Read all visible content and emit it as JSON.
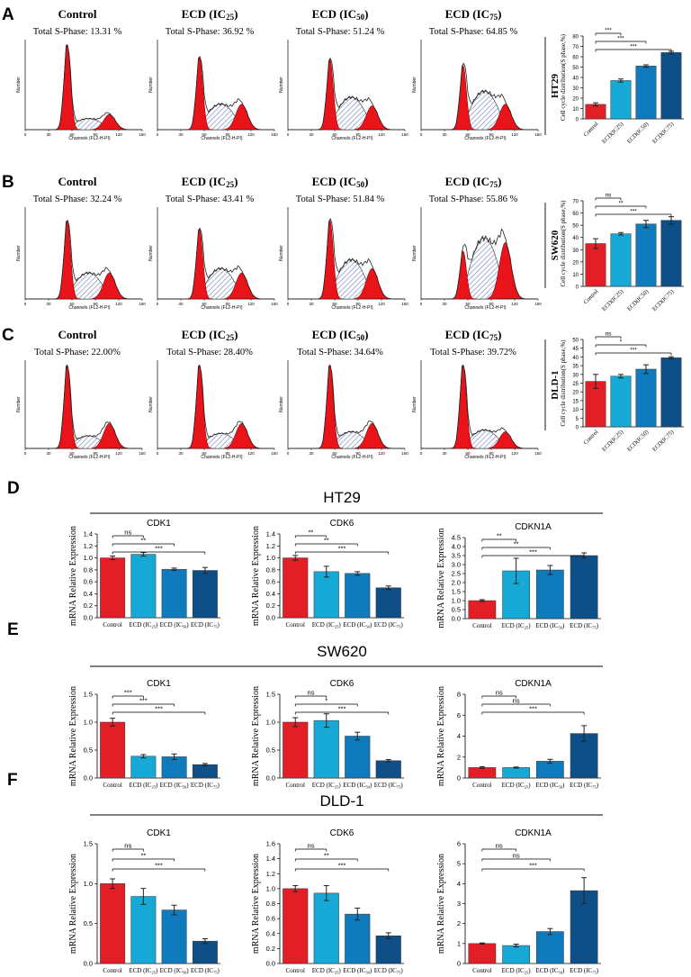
{
  "colors": {
    "control": "#e41e26",
    "ic25": "#17a9d6",
    "ic50": "#0f7bbd",
    "ic75": "#0d4f86",
    "peak": "#e8141a",
    "hatch": "#7f8fc4"
  },
  "top_panels": [
    {
      "letter": "A",
      "cell_line": "HT29",
      "histograms": [
        {
          "title": "Control",
          "s_phase": "Total S-Phase: 13.31 %",
          "g1": 1.0,
          "s": 0.13,
          "g2": 0.18
        },
        {
          "title": "ECD (IC",
          "sub": "25",
          "s_phase": "Total S-Phase: 36.92 %",
          "g1": 0.85,
          "s": 0.3,
          "g2": 0.3
        },
        {
          "title": "ECD (IC",
          "sub": "50",
          "s_phase": "Total S-Phase: 51.24 %",
          "g1": 0.82,
          "s": 0.38,
          "g2": 0.28
        },
        {
          "title": "ECD (IC",
          "sub": "75",
          "s_phase": "Total S-Phase: 64.85 %",
          "g1": 0.75,
          "s": 0.45,
          "g2": 0.3
        }
      ]
    },
    {
      "letter": "B",
      "cell_line": "SW620",
      "histograms": [
        {
          "title": "Control",
          "s_phase": "Total S-Phase: 32.24 %",
          "g1": 0.9,
          "s": 0.3,
          "g2": 0.3
        },
        {
          "title": "ECD (IC",
          "sub": "25",
          "s_phase": "Total S-Phase: 43.41 %",
          "g1": 0.8,
          "s": 0.35,
          "g2": 0.3
        },
        {
          "title": "ECD (IC",
          "sub": "50",
          "s_phase": "Total S-Phase: 51.84 %",
          "g1": 0.9,
          "s": 0.45,
          "g2": 0.35
        },
        {
          "title": "ECD (IC",
          "sub": "75",
          "s_phase": "Total S-Phase: 55.86 %",
          "g1": 0.55,
          "s": 0.7,
          "g2": 0.65
        }
      ]
    },
    {
      "letter": "C",
      "cell_line": "DLD-1",
      "histograms": [
        {
          "title": "Control",
          "s_phase": "Total S-Phase: 22.00%",
          "g1": 1.0,
          "s": 0.15,
          "g2": 0.3
        },
        {
          "title": "ECD (IC",
          "sub": "25",
          "s_phase": "Total S-Phase: 28.40%",
          "g1": 1.0,
          "s": 0.18,
          "g2": 0.3
        },
        {
          "title": "ECD (IC",
          "sub": "50",
          "s_phase": "Total S-Phase: 34.64%",
          "g1": 1.0,
          "s": 0.2,
          "g2": 0.3
        },
        {
          "title": "ECD (IC",
          "sub": "75",
          "s_phase": "Total S-Phase: 39.72%",
          "g1": 1.0,
          "s": 0.22,
          "g2": 0.2
        }
      ]
    }
  ],
  "histogram_labels": {
    "xlabel": "Channels   (FL2-H-PI)",
    "ylabel": "Number",
    "xticks": [
      "0",
      "30",
      "60",
      "90",
      "120",
      "150"
    ]
  },
  "chart_data": [
    {
      "type": "bar",
      "panel": "A",
      "title": "HT29",
      "ylabel": "Cell cycle distribution(S phase,%)",
      "categories": [
        "Control",
        "ECD(IC25)",
        "ECD(IC50)",
        "ECD(IC75)"
      ],
      "values": [
        14,
        37,
        51,
        64
      ],
      "errors": [
        1.5,
        1.5,
        1.2,
        1.3
      ],
      "ylim": [
        0,
        80
      ],
      "yticks": [
        "0",
        "10",
        "20",
        "30",
        "40",
        "50",
        "60",
        "70",
        "80"
      ],
      "sig": [
        "***",
        "***",
        "***"
      ]
    },
    {
      "type": "bar",
      "panel": "B",
      "title": "SW620",
      "ylabel": "Cell cycle distribution(S phase,%)",
      "categories": [
        "Control",
        "ECD(IC25)",
        "ECD(IC50)",
        "ECD(IC75)"
      ],
      "values": [
        35,
        43,
        51,
        54
      ],
      "errors": [
        4,
        1,
        3,
        3
      ],
      "ylim": [
        0,
        70
      ],
      "yticks": [
        "0",
        "10",
        "20",
        "30",
        "40",
        "50",
        "60",
        "70"
      ],
      "sig": [
        "ns",
        "**",
        "***"
      ]
    },
    {
      "type": "bar",
      "panel": "C",
      "title": "DLD-1",
      "ylabel": "Cell cycle distribution(S phase,%)",
      "categories": [
        "Control",
        "ECD(IC25)",
        "ECD(IC50)",
        "ECD(IC75)"
      ],
      "values": [
        26,
        29,
        33,
        39.5
      ],
      "errors": [
        4,
        1,
        2.5,
        0.6
      ],
      "ylim": [
        0,
        50
      ],
      "yticks": [
        "0",
        "5",
        "10",
        "15",
        "20",
        "25",
        "30",
        "35",
        "40",
        "45",
        "50"
      ],
      "sig": [
        "ns",
        "*",
        "***"
      ]
    },
    {
      "type": "bar",
      "panel": "D",
      "group": "HT29",
      "title": "CDK1",
      "ylabel": "mRNA Relative Expression",
      "categories": [
        "Control",
        "ECD (IC25)",
        "ECD (IC50)",
        "ECD (IC75)"
      ],
      "values": [
        1.0,
        1.06,
        0.81,
        0.79
      ],
      "errors": [
        0.03,
        0.03,
        0.02,
        0.05
      ],
      "ylim": [
        0,
        1.4
      ],
      "yticks": [
        "0.0",
        "0.2",
        "0.4",
        "0.6",
        "0.8",
        "1.0",
        "1.2",
        "1.4"
      ],
      "sig": [
        "ns",
        "**",
        "***"
      ]
    },
    {
      "type": "bar",
      "panel": "D",
      "group": "HT29",
      "title": "CDK6",
      "ylabel": "mRNA Relative Expression",
      "categories": [
        "Control",
        "ECD (IC25)",
        "ECD (IC50)",
        "ECD (IC75)"
      ],
      "values": [
        1.0,
        0.77,
        0.74,
        0.5
      ],
      "errors": [
        0.04,
        0.09,
        0.03,
        0.03
      ],
      "ylim": [
        0,
        1.4
      ],
      "yticks": [
        "0.0",
        "0.2",
        "0.4",
        "0.6",
        "0.8",
        "1.0",
        "1.2",
        "1.4"
      ],
      "sig": [
        "**",
        "**",
        "***"
      ]
    },
    {
      "type": "bar",
      "panel": "D",
      "group": "HT29",
      "title": "CDKN1A",
      "ylabel": "mRNA Relative Expression",
      "categories": [
        "Control",
        "ECD (IC25)",
        "ECD (IC50)",
        "ECD (IC75)"
      ],
      "values": [
        1.0,
        2.65,
        2.7,
        3.5
      ],
      "errors": [
        0.05,
        0.7,
        0.25,
        0.15
      ],
      "ylim": [
        0,
        4.5
      ],
      "yticks": [
        "0.0",
        "0.5",
        "1.0",
        "1.5",
        "2.0",
        "2.5",
        "3.0",
        "3.5",
        "4.0",
        "4.5"
      ],
      "sig": [
        "**",
        "**",
        "***"
      ]
    },
    {
      "type": "bar",
      "panel": "E",
      "group": "SW620",
      "title": "CDK1",
      "ylabel": "mRNA Relative Expression",
      "categories": [
        "Control",
        "ECD (IC25)",
        "ECD (IC50)",
        "ECD (IC75)"
      ],
      "values": [
        1.0,
        0.39,
        0.38,
        0.24
      ],
      "errors": [
        0.07,
        0.03,
        0.05,
        0.02
      ],
      "ylim": [
        0,
        1.5
      ],
      "yticks": [
        "0.0",
        "0.5",
        "1.0",
        "1.5"
      ],
      "sig": [
        "***",
        "***",
        "***"
      ]
    },
    {
      "type": "bar",
      "panel": "E",
      "group": "SW620",
      "title": "CDK6",
      "ylabel": "mRNA Relative Expression",
      "categories": [
        "Control",
        "ECD (IC25)",
        "ECD (IC50)",
        "ECD (IC75)"
      ],
      "values": [
        1.0,
        1.03,
        0.75,
        0.31
      ],
      "errors": [
        0.08,
        0.12,
        0.07,
        0.02
      ],
      "ylim": [
        0,
        1.5
      ],
      "yticks": [
        "0.0",
        "0.5",
        "1.0",
        "1.5"
      ],
      "sig": [
        "ns",
        "*",
        "***"
      ]
    },
    {
      "type": "bar",
      "panel": "E",
      "group": "SW620",
      "title": "CDKN1A",
      "ylabel": "mRNA Relative Expression",
      "categories": [
        "Control",
        "ECD (IC25)",
        "ECD (IC50)",
        "ECD (IC75)"
      ],
      "values": [
        1.0,
        1.0,
        1.6,
        4.25
      ],
      "errors": [
        0.08,
        0.05,
        0.18,
        0.75
      ],
      "ylim": [
        0,
        8
      ],
      "yticks": [
        "0",
        "2",
        "4",
        "6",
        "8"
      ],
      "sig": [
        "ns",
        "ns",
        "***"
      ]
    },
    {
      "type": "bar",
      "panel": "F",
      "group": "DLD-1",
      "title": "CDK1",
      "ylabel": "mRNA Relative Expression",
      "categories": [
        "Control",
        "ECD (IC25)",
        "ECD (IC50)",
        "ECD (IC75)"
      ],
      "values": [
        1.0,
        0.84,
        0.67,
        0.28
      ],
      "errors": [
        0.06,
        0.1,
        0.06,
        0.03
      ],
      "ylim": [
        0,
        1.5
      ],
      "yticks": [
        "0.0",
        "0.5",
        "1.0",
        "1.5"
      ],
      "sig": [
        "ns",
        "**",
        "***"
      ]
    },
    {
      "type": "bar",
      "panel": "F",
      "group": "DLD-1",
      "title": "CDK6",
      "ylabel": "mRNA Relative Expression",
      "categories": [
        "Control",
        "ECD (IC25)",
        "ECD (IC50)",
        "ECD (IC75)"
      ],
      "values": [
        1.0,
        0.94,
        0.66,
        0.37
      ],
      "errors": [
        0.04,
        0.1,
        0.08,
        0.04
      ],
      "ylim": [
        0,
        1.6
      ],
      "yticks": [
        "0.0",
        "0.2",
        "0.4",
        "0.6",
        "0.8",
        "1.0",
        "1.2",
        "1.4",
        "1.6"
      ],
      "sig": [
        "ns",
        "**",
        "***"
      ]
    },
    {
      "type": "bar",
      "panel": "F",
      "group": "DLD-1",
      "title": "CDKN1A",
      "ylabel": "mRNA Relative Expression",
      "categories": [
        "Control",
        "ECD (IC25)",
        "ECD (IC50)",
        "ECD (IC75)"
      ],
      "values": [
        1.0,
        0.9,
        1.6,
        3.65
      ],
      "errors": [
        0.03,
        0.07,
        0.15,
        0.65
      ],
      "ylim": [
        0,
        6
      ],
      "yticks": [
        "0",
        "1",
        "2",
        "3",
        "4",
        "5",
        "6"
      ],
      "sig": [
        "ns",
        "ns",
        "***"
      ]
    }
  ],
  "section_titles": [
    {
      "letter": "D",
      "title": "HT29"
    },
    {
      "letter": "E",
      "title": "SW620"
    },
    {
      "letter": "F",
      "title": "DLD-1"
    }
  ]
}
